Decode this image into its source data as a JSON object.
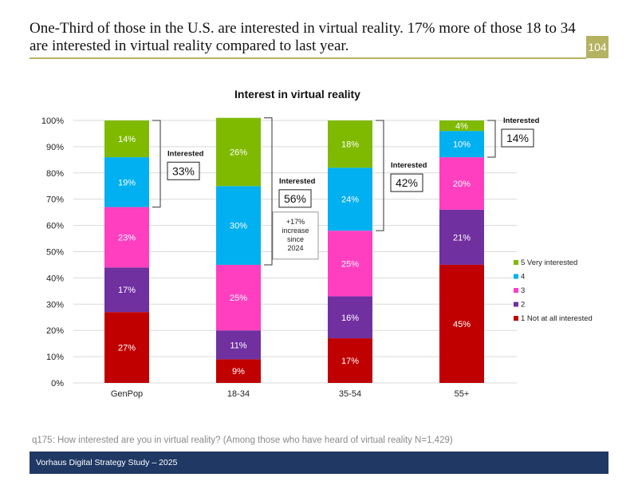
{
  "slide": {
    "headline": "One-Third of those in the U.S. are interested in virtual reality. 17% more of those 18 to 34 are interested in virtual reality compared to last year.",
    "page_number": "104",
    "footnote": "q175: How interested are you in virtual reality? (Among those who have heard of virtual reality N=1,429)",
    "footer": "Vorhaus Digital Strategy Study – 2025"
  },
  "chart_data": {
    "type": "bar",
    "stacked": true,
    "title": "Interest in virtual reality",
    "categories": [
      "GenPop",
      "18-34",
      "35-54",
      "55+"
    ],
    "ylim": [
      0,
      100
    ],
    "yticks": [
      "0%",
      "10%",
      "20%",
      "30%",
      "40%",
      "50%",
      "60%",
      "70%",
      "80%",
      "90%",
      "100%"
    ],
    "series": [
      {
        "name": "1 Not at all interested",
        "color": "#c00000",
        "values": [
          27,
          9,
          17,
          45
        ],
        "labels": [
          "27%",
          "9%",
          "17%",
          "45%"
        ]
      },
      {
        "name": "2",
        "color": "#7030a0",
        "values": [
          17,
          11,
          16,
          21
        ],
        "labels": [
          "17%",
          "11%",
          "16%",
          "21%"
        ]
      },
      {
        "name": "3",
        "color": "#ff3fbf",
        "values": [
          23,
          25,
          25,
          20
        ],
        "labels": [
          "23%",
          "25%",
          "25%",
          "20%"
        ]
      },
      {
        "name": "4",
        "color": "#00b0f0",
        "values": [
          19,
          30,
          24,
          10
        ],
        "labels": [
          "19%",
          "30%",
          "24%",
          "10%"
        ]
      },
      {
        "name": "5 Very interested",
        "color": "#7fba00",
        "values": [
          14,
          26,
          18,
          4
        ],
        "labels": [
          "14%",
          "26%",
          "18%",
          "4%"
        ]
      }
    ],
    "annotations": [
      {
        "category": "GenPop",
        "label": "Interested",
        "value": "33%"
      },
      {
        "category": "18-34",
        "label": "Interested",
        "value": "56%",
        "note": [
          "+17%",
          "increase",
          "since",
          "2024"
        ]
      },
      {
        "category": "35-54",
        "label": "Interested",
        "value": "42%"
      },
      {
        "category": "55+",
        "label": "Interested",
        "value": "14%"
      }
    ],
    "legend_position": "right"
  }
}
